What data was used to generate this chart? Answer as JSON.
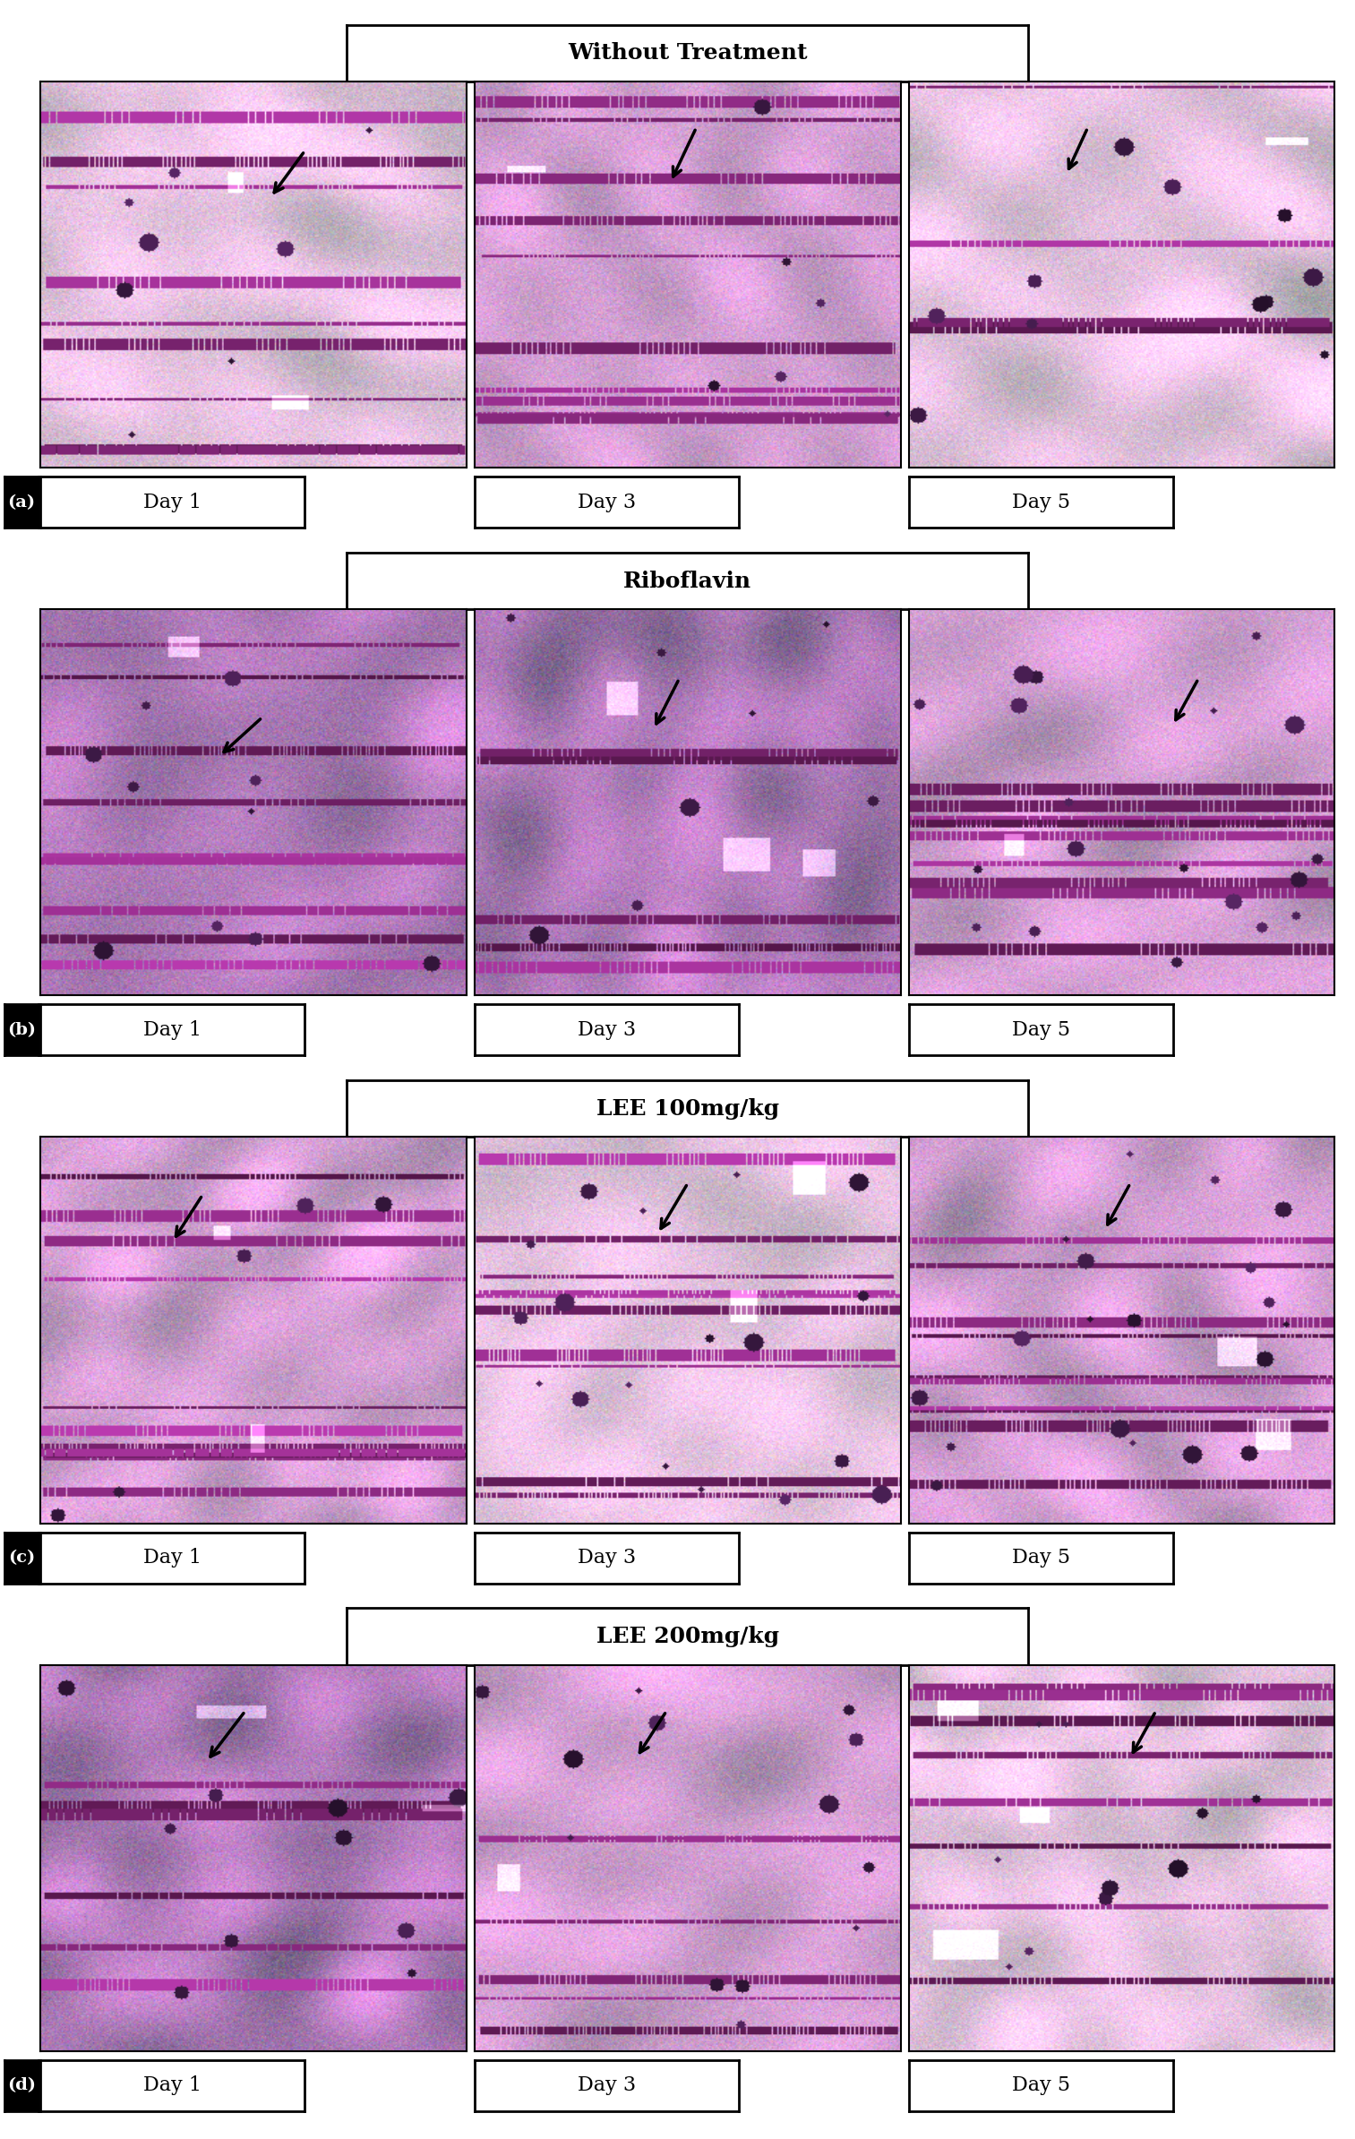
{
  "fig_width": 15.13,
  "fig_height": 23.88,
  "dpi": 100,
  "background_color": "#ffffff",
  "border_color": "#000000",
  "rows": [
    {
      "group_label": "Without Treatment",
      "row_letter": "(a)",
      "day_labels": [
        "Day 1",
        "Day 3",
        "Day 5"
      ]
    },
    {
      "group_label": "Riboflavin",
      "row_letter": "(b)",
      "day_labels": [
        "Day 1",
        "Day 3",
        "Day 5"
      ]
    },
    {
      "group_label": "LEE 100mg/kg",
      "row_letter": "(c)",
      "day_labels": [
        "Day 1",
        "Day 3",
        "Day 5"
      ]
    },
    {
      "group_label": "LEE 200mg/kg",
      "row_letter": "(d)",
      "day_labels": [
        "Day 1",
        "Day 3",
        "Day 5"
      ]
    }
  ],
  "group_label_fontsize": 18,
  "day_label_fontsize": 16,
  "letter_fontsize": 14,
  "n_cols": 3,
  "n_rows": 4
}
